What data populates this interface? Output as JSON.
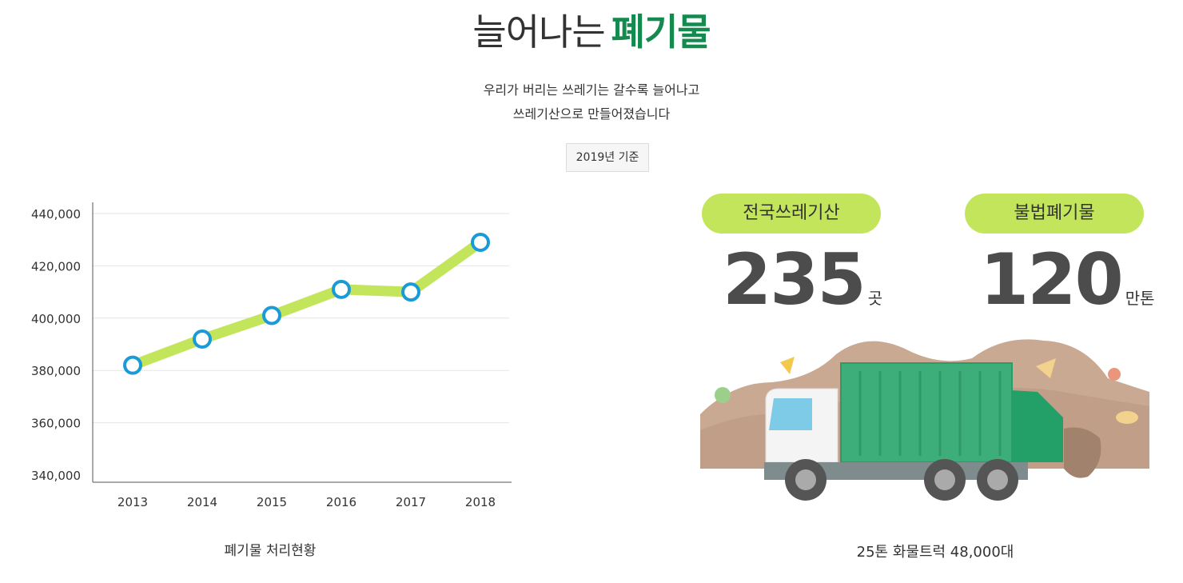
{
  "header": {
    "title_main": "늘어나는",
    "title_highlight": "폐기물",
    "subtitle_line1": "우리가 버리는 쓰레기는 갈수록 늘어나고",
    "subtitle_line2": "쓰레기산으로 만들어졌습니다",
    "badge": "2019년 기준"
  },
  "colors": {
    "highlight": "#148a4e",
    "line": "#c3e55c",
    "marker": "#1a9ad6",
    "pill": "#c3e55c",
    "truck_body": "#3dae7a"
  },
  "chart_caption": "폐기물 처리현황",
  "chart_data": {
    "type": "line",
    "title": "",
    "xlabel": "",
    "ylabel": "",
    "categories": [
      "2013",
      "2014",
      "2015",
      "2016",
      "2017",
      "2018"
    ],
    "values": [
      382000,
      392000,
      401000,
      411000,
      410000,
      429000
    ],
    "ylim": [
      340000,
      440000
    ],
    "yticks": [
      "340,000",
      "360,000",
      "380,000",
      "400,000",
      "420,000",
      "440,000"
    ],
    "grid": true
  },
  "stats": [
    {
      "label": "전국쓰레기산",
      "value": "235",
      "unit": "곳"
    },
    {
      "label": "불법폐기물",
      "value": "120",
      "unit": "만톤"
    }
  ],
  "truck_icon": "garbage-truck-icon",
  "truck_caption": "25톤 화물트럭 48,000대"
}
